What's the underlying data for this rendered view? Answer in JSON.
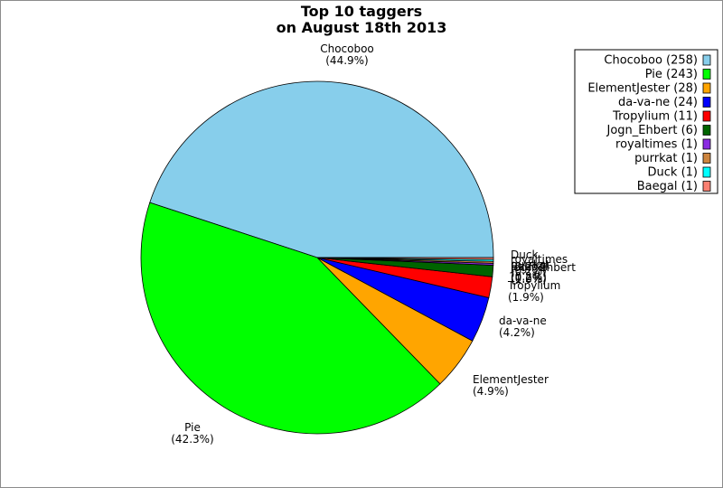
{
  "chart_data": {
    "type": "pie",
    "title": "Top 10 taggers",
    "subtitle": "on August 18th 2013",
    "slices": [
      {
        "name": "Chocoboo",
        "value": 258,
        "percent_label": "(44.9%)",
        "legend": "Chocoboo (258)",
        "color": "#87ceeb"
      },
      {
        "name": "Pie",
        "value": 243,
        "percent_label": "(42.3%)",
        "legend": "Pie (243)",
        "color": "#00ff00"
      },
      {
        "name": "ElementJester",
        "value": 28,
        "percent_label": "(4.9%)",
        "legend": "ElementJester (28)",
        "color": "#ffa500"
      },
      {
        "name": "da-va-ne",
        "value": 24,
        "percent_label": "(4.2%)",
        "legend": "da-va-ne (24)",
        "color": "#0000ff"
      },
      {
        "name": "Tropylium",
        "value": 11,
        "percent_label": "(1.9%)",
        "legend": "Tropylium (11)",
        "color": "#ff0000"
      },
      {
        "name": "Jogn_Ehbert",
        "value": 6,
        "percent_label": "(1.0%)",
        "legend": "Jogn_Ehbert (6)",
        "color": "#006400"
      },
      {
        "name": "royaltimes",
        "value": 1,
        "percent_label": "(0.2%)",
        "legend": "royaltimes (1)",
        "color": "#8a2be2"
      },
      {
        "name": "purrkat",
        "value": 1,
        "percent_label": "(0.2%)",
        "legend": "purrkat (1)",
        "color": "#cd853f"
      },
      {
        "name": "Duck",
        "value": 1,
        "percent_label": "(0.2%)",
        "legend": "Duck (1)",
        "color": "#00ffff"
      },
      {
        "name": "Baegal",
        "value": 1,
        "percent_label": "(0.2%)",
        "legend": "Baegal (1)",
        "color": "#fa8072"
      }
    ],
    "legend_position": "top-right",
    "start_angle_deg": 0,
    "direction": "counterclockwise"
  }
}
